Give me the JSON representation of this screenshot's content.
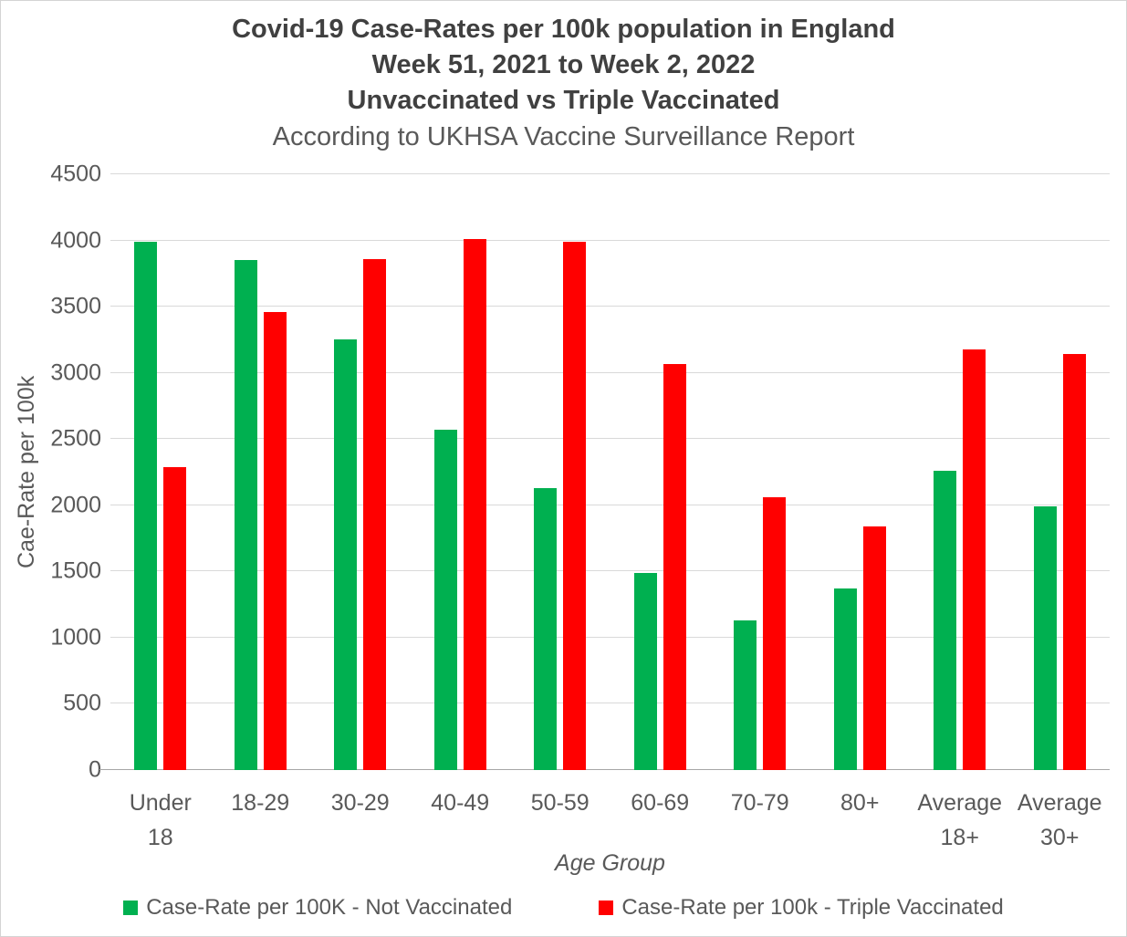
{
  "header": {
    "title_line1": "Covid-19 Case-Rates per 100k population in England",
    "title_line2": "Week 51, 2021 to Week 2, 2022",
    "title_line3": "Unvaccinated vs Triple Vaccinated",
    "subtitle": "According to UKHSA Vaccine Surveillance Report"
  },
  "chart_data": {
    "type": "bar",
    "title": "Covid-19 Case-Rates per 100k population in England Week 51, 2021 to Week 2, 2022 Unvaccinated vs Triple Vaccinated",
    "subtitle": "According to UKHSA Vaccine Surveillance Report",
    "categories": [
      "Under 18",
      "18-29",
      "30-29",
      "40-49",
      "50-59",
      "60-69",
      "70-79",
      "80+",
      "Average 18+",
      "Average 30+"
    ],
    "series": [
      {
        "name": "Case-Rate per 100K - Not Vaccinated",
        "color": "#00B050",
        "values": [
          3990,
          3850,
          3250,
          2570,
          2130,
          1490,
          1130,
          1370,
          2260,
          1990
        ]
      },
      {
        "name": "Case-Rate per 100k - Triple Vaccinated",
        "color": "#FF0000",
        "values": [
          2290,
          3460,
          3860,
          4010,
          3990,
          3070,
          2060,
          1840,
          3180,
          3140
        ]
      }
    ],
    "xlabel": "Age Group",
    "ylabel": "Cae-Rate per 100k",
    "ylim": [
      0,
      4500
    ],
    "y_tick_step": 500,
    "grid": "horizontal-only",
    "legend_position": "bottom-center"
  },
  "colors": {
    "not_vaccinated": "#00B050",
    "triple_vaccinated": "#FF0000",
    "gridline": "#D9D9D9",
    "axis_line": "#A6A6A6",
    "title_text": "#404040",
    "label_text": "#595959",
    "page_border": "#D4D4D4",
    "background": "#FFFFFF"
  }
}
